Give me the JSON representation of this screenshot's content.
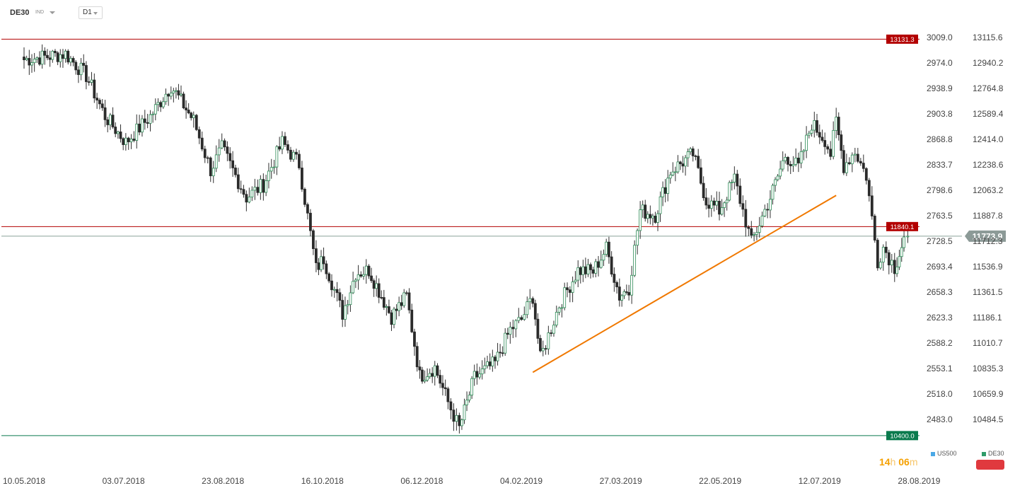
{
  "toolbar": {
    "symbol": "DE30",
    "instrument_type": "IND",
    "timeframe": "D1"
  },
  "legend": [
    {
      "name": "US500",
      "color": "#4aa8e6"
    },
    {
      "name": "DE30",
      "color": "#2e9b69"
    }
  ],
  "timer": {
    "hours": "14",
    "hours_unit": "h",
    "minutes": "06",
    "minutes_unit": "m"
  },
  "chart_data": {
    "type": "candlestick",
    "instrument": "DE30",
    "timeframe": "D1",
    "left_axis_ticks": [
      "3009.0",
      "2974.0",
      "2938.9",
      "2903.8",
      "2868.8",
      "2833.7",
      "2798.6",
      "2763.5",
      "2728.5",
      "2693.4",
      "2658.3",
      "2623.3",
      "2588.2",
      "2553.1",
      "2518.0",
      "2483.0"
    ],
    "right_axis_ticks": [
      "13115.6",
      "12940.2",
      "12764.8",
      "12589.4",
      "12414.0",
      "12238.6",
      "12063.2",
      "11887.8",
      "11712.3",
      "11536.9",
      "11361.5",
      "11186.1",
      "11010.7",
      "10835.3",
      "10659.9",
      "10484.5"
    ],
    "x_ticks": [
      "10.05.2018",
      "03.07.2018",
      "23.08.2018",
      "16.10.2018",
      "06.12.2018",
      "04.02.2019",
      "27.03.2019",
      "22.05.2019",
      "12.07.2019",
      "28.08.2019"
    ],
    "ylim": [
      10400,
      13150
    ],
    "current_price": 11773.9,
    "levels": [
      {
        "value": 13131.3,
        "label": "13131.3",
        "color": "#b30000"
      },
      {
        "value": 11840.1,
        "label": "11840.1",
        "color": "#b30000"
      },
      {
        "value": 10400.0,
        "label": "10400.0",
        "color": "#0a7a4d"
      }
    ],
    "trendline": {
      "from": [
        "04.02.2019",
        10836
      ],
      "to": [
        "15.07.2019",
        12055
      ],
      "color": "#f07800"
    },
    "anchors": [
      [
        "10.05.2018",
        12990
      ],
      [
        "01.06.2018",
        13030
      ],
      [
        "12.06.2018",
        12880
      ],
      [
        "22.06.2018",
        12600
      ],
      [
        "03.07.2018",
        12420
      ],
      [
        "16.07.2018",
        12600
      ],
      [
        "27.07.2018",
        12810
      ],
      [
        "08.08.2018",
        12570
      ],
      [
        "17.08.2018",
        12230
      ],
      [
        "23.08.2018",
        12380
      ],
      [
        "05.09.2018",
        12040
      ],
      [
        "14.09.2018",
        12130
      ],
      [
        "24.09.2018",
        12420
      ],
      [
        "03.10.2018",
        12270
      ],
      [
        "12.10.2018",
        11550
      ],
      [
        "16.10.2018",
        11620
      ],
      [
        "26.10.2018",
        11240
      ],
      [
        "02.11.2018",
        11520
      ],
      [
        "09.11.2018",
        11540
      ],
      [
        "21.11.2018",
        11220
      ],
      [
        "29.11.2018",
        11360
      ],
      [
        "06.12.2018",
        10810
      ],
      [
        "14.12.2018",
        10870
      ],
      [
        "21.12.2018",
        10630
      ],
      [
        "27.12.2018",
        10450
      ],
      [
        "04.01.2019",
        10800
      ],
      [
        "15.01.2019",
        10900
      ],
      [
        "23.01.2019",
        11130
      ],
      [
        "29.01.2019",
        11200
      ],
      [
        "04.02.2019",
        11360
      ],
      [
        "08.02.2019",
        10930
      ],
      [
        "18.02.2019",
        11300
      ],
      [
        "28.02.2019",
        11540
      ],
      [
        "08.03.2019",
        11530
      ],
      [
        "15.03.2019",
        11690
      ],
      [
        "22.03.2019",
        11360
      ],
      [
        "27.03.2019",
        11420
      ],
      [
        "02.04.2019",
        11950
      ],
      [
        "10.04.2019",
        11920
      ],
      [
        "18.04.2019",
        12220
      ],
      [
        "30.04.2019",
        12340
      ],
      [
        "07.05.2019",
        12020
      ],
      [
        "14.05.2019",
        11950
      ],
      [
        "22.05.2019",
        12170
      ],
      [
        "31.05.2019",
        11730
      ],
      [
        "10.06.2019",
        12040
      ],
      [
        "18.06.2019",
        12330
      ],
      [
        "25.06.2019",
        12250
      ],
      [
        "02.07.2019",
        12550
      ],
      [
        "09.07.2019",
        12440
      ],
      [
        "12.07.2019",
        12340
      ],
      [
        "15.07.2019",
        12560
      ],
      [
        "19.07.2019",
        12260
      ],
      [
        "25.07.2019",
        12360
      ],
      [
        "31.07.2019",
        12190
      ],
      [
        "06.08.2019",
        11600
      ],
      [
        "09.08.2019",
        11700
      ],
      [
        "15.08.2019",
        11560
      ],
      [
        "20.08.2019",
        11750
      ],
      [
        "22.08.2019",
        11773.9
      ]
    ],
    "grid": false,
    "legend_position": "bottom-right"
  }
}
